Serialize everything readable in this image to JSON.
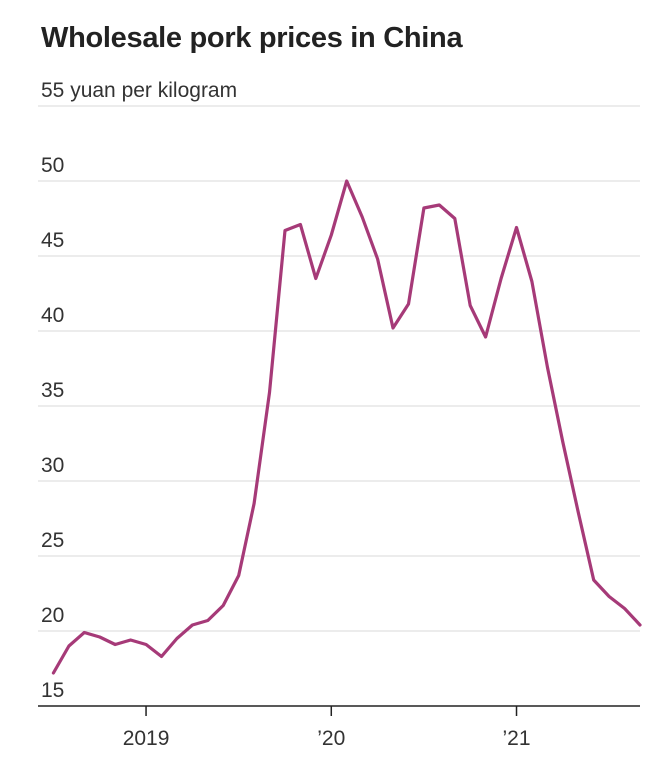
{
  "chart_data": {
    "type": "line",
    "title": "Wholesale pork prices in China",
    "ylabel_top": "55 yuan per kilogram",
    "y_ticks": [
      {
        "value": 55,
        "label": "55 yuan per kilogram"
      },
      {
        "value": 50,
        "label": "50"
      },
      {
        "value": 45,
        "label": "45"
      },
      {
        "value": 40,
        "label": "40"
      },
      {
        "value": 35,
        "label": "35"
      },
      {
        "value": 30,
        "label": "30"
      },
      {
        "value": 25,
        "label": "25"
      },
      {
        "value": 20,
        "label": "20"
      },
      {
        "value": 15,
        "label": "15"
      }
    ],
    "x_ticks": [
      {
        "value": "2019-01",
        "label": "2019"
      },
      {
        "value": "2020-01",
        "label": "’20"
      },
      {
        "value": "2021-01",
        "label": "’21"
      }
    ],
    "ylim": [
      15,
      55
    ],
    "xlim": [
      "2018-06",
      "2021-09"
    ],
    "grid": true,
    "series": [
      {
        "color": "#a63a78",
        "x": [
          "2018-07",
          "2018-08",
          "2018-09",
          "2018-10",
          "2018-11",
          "2018-12",
          "2019-01",
          "2019-02",
          "2019-03",
          "2019-04",
          "2019-05",
          "2019-06",
          "2019-07",
          "2019-08",
          "2019-09",
          "2019-10",
          "2019-11",
          "2019-12",
          "2020-01",
          "2020-02",
          "2020-03",
          "2020-04",
          "2020-05",
          "2020-06",
          "2020-07",
          "2020-08",
          "2020-09",
          "2020-10",
          "2020-11",
          "2020-12",
          "2021-01",
          "2021-02",
          "2021-03",
          "2021-04",
          "2021-05",
          "2021-06",
          "2021-07",
          "2021-08",
          "2021-09"
        ],
        "values": [
          17.2,
          19.0,
          19.9,
          19.6,
          19.1,
          19.4,
          19.1,
          18.3,
          19.5,
          20.4,
          20.7,
          21.7,
          23.7,
          28.5,
          35.9,
          46.7,
          47.1,
          43.5,
          46.4,
          50.0,
          47.6,
          44.8,
          40.2,
          41.8,
          48.2,
          48.4,
          47.5,
          41.7,
          39.6,
          43.5,
          46.9,
          43.3,
          37.6,
          32.6,
          27.9,
          23.4,
          22.3,
          21.5,
          20.4
        ]
      }
    ]
  }
}
